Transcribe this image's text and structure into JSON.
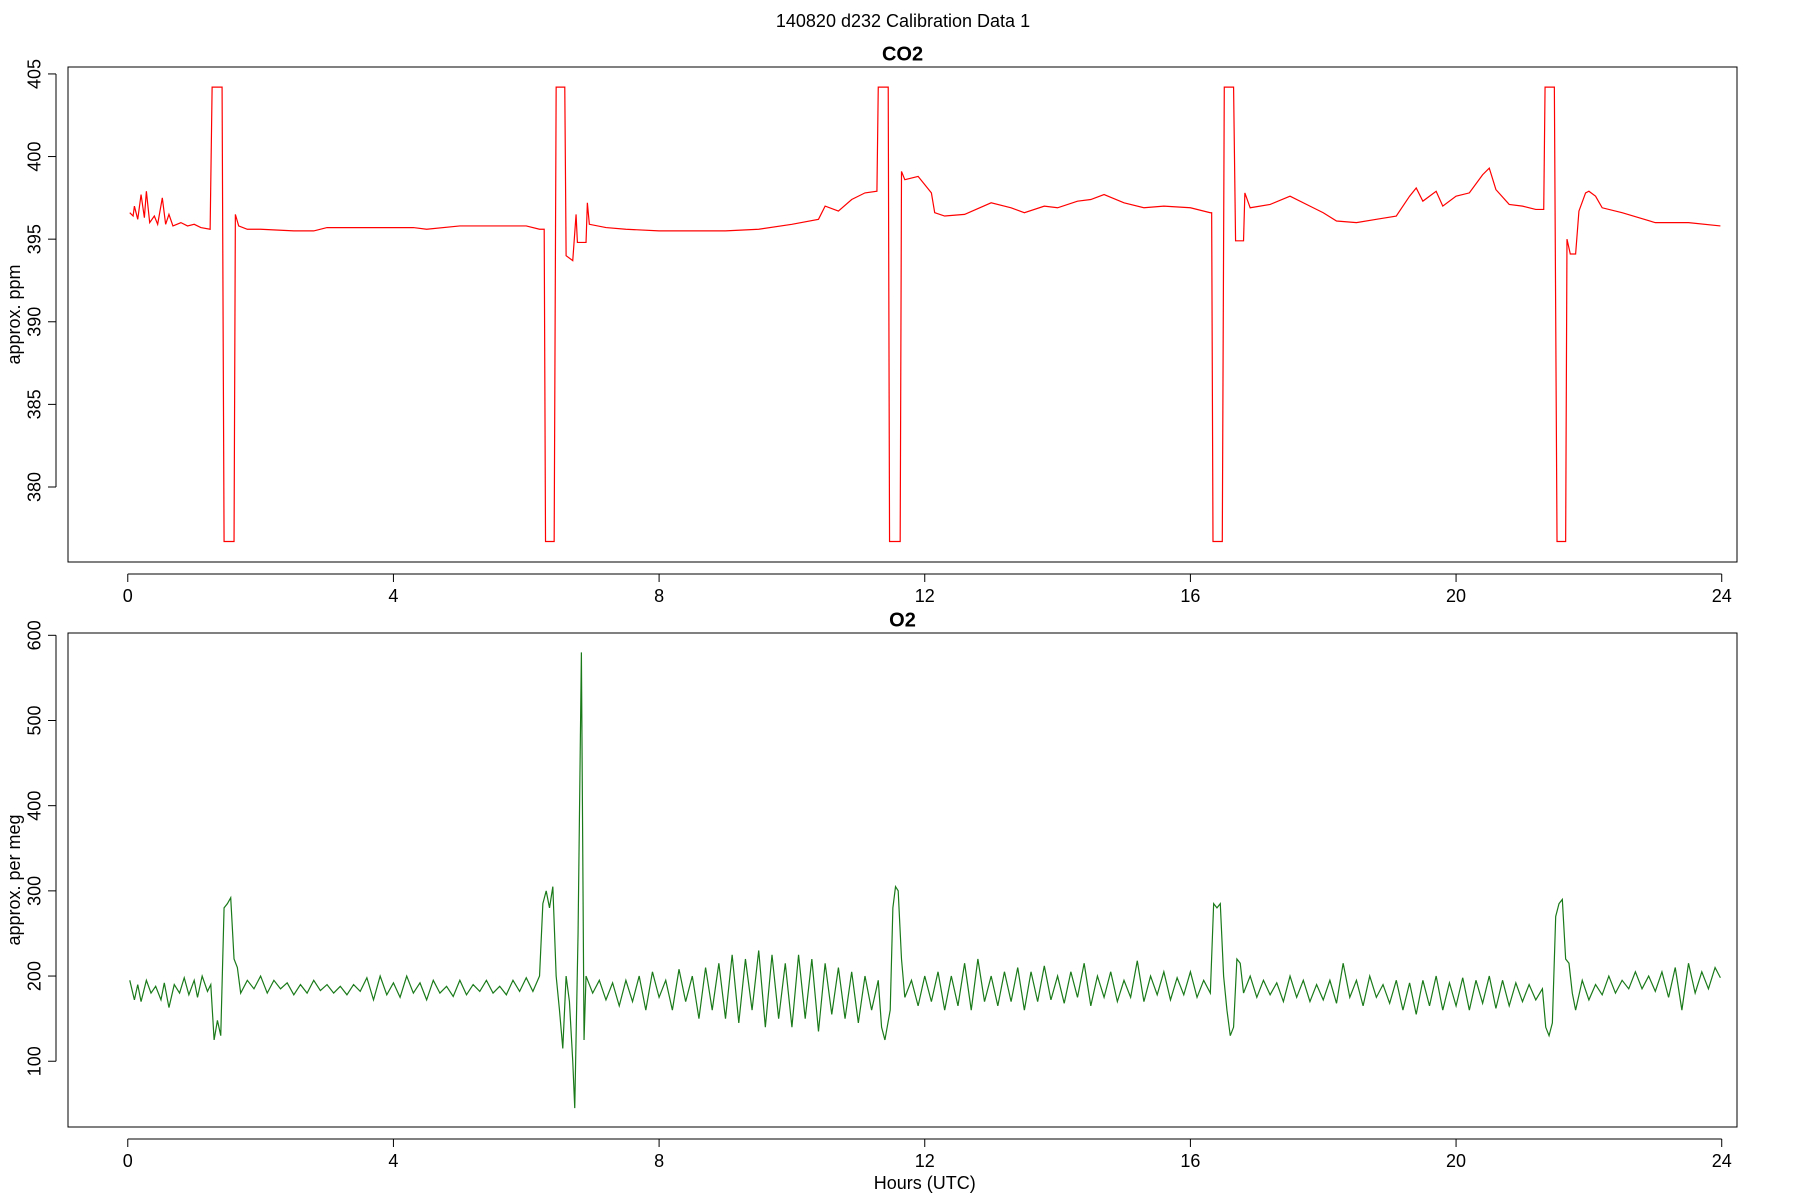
{
  "title": "140820   d232   Calibration Data 1",
  "chart_data": [
    {
      "type": "line",
      "title": "CO2",
      "ylabel": "approx. ppm",
      "xlim": [
        -0.9,
        24.23
      ],
      "ylim": [
        375.46,
        405.42
      ],
      "xticks": [
        0,
        4,
        8,
        12,
        16,
        20,
        24
      ],
      "yticks": [
        380,
        385,
        390,
        395,
        400,
        405
      ],
      "x": [
        0.03,
        0.08,
        0.1,
        0.15,
        0.2,
        0.25,
        0.28,
        0.33,
        0.4,
        0.45,
        0.52,
        0.57,
        0.62,
        0.68,
        0.8,
        0.9,
        1.0,
        1.1,
        1.24,
        1.27,
        1.42,
        1.45,
        1.6,
        1.62,
        1.67,
        1.8,
        2.0,
        2.5,
        2.8,
        3.0,
        3.5,
        4.0,
        4.3,
        4.5,
        5.0,
        5.5,
        6.0,
        6.2,
        6.27,
        6.29,
        6.42,
        6.45,
        6.58,
        6.6,
        6.7,
        6.75,
        6.77,
        6.9,
        6.92,
        6.95,
        7.2,
        7.5,
        8.0,
        8.5,
        9.0,
        9.5,
        10.0,
        10.4,
        10.5,
        10.7,
        10.9,
        11.1,
        11.28,
        11.3,
        11.45,
        11.47,
        11.63,
        11.65,
        11.7,
        11.9,
        12.0,
        12.1,
        12.15,
        12.3,
        12.6,
        13.0,
        13.3,
        13.5,
        13.8,
        14.0,
        14.3,
        14.5,
        14.7,
        15.0,
        15.3,
        15.6,
        16.0,
        16.3,
        16.32,
        16.34,
        16.48,
        16.51,
        16.65,
        16.68,
        16.8,
        16.82,
        16.9,
        17.2,
        17.5,
        17.8,
        18.0,
        18.2,
        18.5,
        18.8,
        19.1,
        19.3,
        19.4,
        19.5,
        19.7,
        19.8,
        20.0,
        20.2,
        20.4,
        20.5,
        20.6,
        20.8,
        21.0,
        21.2,
        21.32,
        21.34,
        21.48,
        21.52,
        21.65,
        21.67,
        21.72,
        21.8,
        21.85,
        21.95,
        22.0,
        22.1,
        22.2,
        22.5,
        23.0,
        23.5,
        23.98
      ],
      "series": [
        {
          "name": "CO2",
          "color": "#ff0000",
          "values": [
            396.6,
            396.4,
            397.0,
            396.2,
            397.7,
            396.3,
            397.9,
            396.0,
            396.4,
            395.9,
            397.5,
            395.9,
            396.5,
            395.8,
            396.0,
            395.8,
            395.9,
            395.7,
            395.6,
            404.2,
            404.2,
            376.7,
            376.7,
            396.5,
            395.8,
            395.6,
            395.6,
            395.5,
            395.5,
            395.7,
            395.7,
            395.7,
            395.7,
            395.6,
            395.8,
            395.8,
            395.8,
            395.6,
            395.6,
            376.7,
            376.7,
            404.2,
            404.2,
            394.0,
            393.7,
            396.5,
            394.8,
            394.8,
            397.2,
            395.9,
            395.7,
            395.6,
            395.5,
            395.5,
            395.5,
            395.6,
            395.9,
            396.2,
            397.0,
            396.7,
            397.4,
            397.8,
            397.9,
            404.2,
            404.2,
            376.7,
            376.7,
            399.1,
            398.6,
            398.8,
            398.3,
            397.8,
            396.6,
            396.4,
            396.5,
            397.2,
            396.9,
            396.6,
            397.0,
            396.9,
            397.3,
            397.4,
            397.7,
            397.2,
            396.9,
            397.0,
            396.9,
            396.6,
            396.6,
            376.7,
            376.7,
            404.2,
            404.2,
            394.9,
            394.9,
            397.8,
            396.9,
            397.1,
            397.6,
            397.0,
            396.6,
            396.1,
            396.0,
            396.2,
            396.4,
            397.6,
            398.1,
            397.3,
            397.9,
            397.0,
            397.6,
            397.8,
            398.9,
            399.3,
            398.0,
            397.1,
            397.0,
            396.8,
            396.8,
            404.2,
            404.2,
            376.7,
            376.7,
            395.0,
            394.1,
            394.1,
            396.7,
            397.8,
            397.9,
            397.6,
            396.9,
            396.6,
            396.0,
            396.0,
            395.8
          ]
        }
      ]
    },
    {
      "type": "line",
      "title": "O2",
      "ylabel": "approx. per meg",
      "xlabel": "Hours (UTC)",
      "xlim": [
        -0.9,
        24.23
      ],
      "ylim": [
        22.8,
        602.7
      ],
      "xticks": [
        0,
        4,
        8,
        12,
        16,
        20,
        24
      ],
      "yticks": [
        100,
        200,
        300,
        400,
        500,
        600
      ],
      "x": [
        0.03,
        0.1,
        0.15,
        0.2,
        0.28,
        0.35,
        0.42,
        0.5,
        0.55,
        0.62,
        0.7,
        0.78,
        0.85,
        0.92,
        1.0,
        1.05,
        1.12,
        1.2,
        1.25,
        1.3,
        1.35,
        1.4,
        1.45,
        1.5,
        1.55,
        1.6,
        1.65,
        1.7,
        1.8,
        1.9,
        2.0,
        2.1,
        2.2,
        2.3,
        2.4,
        2.5,
        2.6,
        2.7,
        2.8,
        2.9,
        3.0,
        3.1,
        3.2,
        3.3,
        3.4,
        3.5,
        3.6,
        3.7,
        3.8,
        3.9,
        4.0,
        4.1,
        4.2,
        4.3,
        4.4,
        4.5,
        4.6,
        4.7,
        4.8,
        4.9,
        5.0,
        5.1,
        5.2,
        5.3,
        5.4,
        5.5,
        5.6,
        5.7,
        5.8,
        5.9,
        6.0,
        6.1,
        6.2,
        6.25,
        6.3,
        6.35,
        6.4,
        6.45,
        6.5,
        6.55,
        6.6,
        6.65,
        6.7,
        6.73,
        6.78,
        6.83,
        6.87,
        6.9,
        7.0,
        7.1,
        7.2,
        7.3,
        7.4,
        7.5,
        7.6,
        7.7,
        7.8,
        7.9,
        8.0,
        8.1,
        8.2,
        8.3,
        8.4,
        8.5,
        8.6,
        8.7,
        8.8,
        8.9,
        9.0,
        9.1,
        9.2,
        9.3,
        9.4,
        9.5,
        9.6,
        9.7,
        9.8,
        9.9,
        10.0,
        10.1,
        10.2,
        10.3,
        10.4,
        10.5,
        10.6,
        10.7,
        10.8,
        10.9,
        11.0,
        11.1,
        11.2,
        11.3,
        11.35,
        11.4,
        11.48,
        11.52,
        11.56,
        11.6,
        11.65,
        11.7,
        11.8,
        11.9,
        12.0,
        12.1,
        12.2,
        12.3,
        12.4,
        12.5,
        12.6,
        12.7,
        12.8,
        12.9,
        13.0,
        13.1,
        13.2,
        13.3,
        13.4,
        13.5,
        13.6,
        13.7,
        13.8,
        13.9,
        14.0,
        14.1,
        14.2,
        14.3,
        14.4,
        14.5,
        14.6,
        14.7,
        14.8,
        14.9,
        15.0,
        15.1,
        15.2,
        15.3,
        15.4,
        15.5,
        15.6,
        15.7,
        15.8,
        15.9,
        16.0,
        16.1,
        16.2,
        16.3,
        16.35,
        16.4,
        16.45,
        16.5,
        16.55,
        16.6,
        16.65,
        16.7,
        16.75,
        16.8,
        16.9,
        17.0,
        17.1,
        17.2,
        17.3,
        17.4,
        17.5,
        17.6,
        17.7,
        17.8,
        17.9,
        18.0,
        18.1,
        18.2,
        18.3,
        18.4,
        18.5,
        18.6,
        18.7,
        18.8,
        18.9,
        19.0,
        19.1,
        19.2,
        19.3,
        19.4,
        19.5,
        19.6,
        19.7,
        19.8,
        19.9,
        20.0,
        20.1,
        20.2,
        20.3,
        20.4,
        20.5,
        20.6,
        20.7,
        20.8,
        20.9,
        21.0,
        21.1,
        21.2,
        21.3,
        21.35,
        21.4,
        21.45,
        21.5,
        21.55,
        21.6,
        21.65,
        21.7,
        21.75,
        21.8,
        21.9,
        22.0,
        22.1,
        22.2,
        22.3,
        22.4,
        22.5,
        22.6,
        22.7,
        22.8,
        22.9,
        23.0,
        23.1,
        23.2,
        23.3,
        23.4,
        23.5,
        23.6,
        23.7,
        23.8,
        23.9,
        23.98
      ],
      "series": [
        {
          "name": "O2",
          "color": "#1a7a1a",
          "values": [
            195,
            172,
            190,
            170,
            195,
            180,
            188,
            172,
            192,
            163,
            190,
            180,
            198,
            178,
            195,
            175,
            200,
            182,
            190,
            125,
            148,
            130,
            280,
            285,
            292,
            220,
            210,
            180,
            195,
            185,
            200,
            180,
            195,
            185,
            192,
            178,
            190,
            180,
            195,
            183,
            190,
            180,
            188,
            178,
            190,
            182,
            198,
            172,
            200,
            178,
            192,
            175,
            200,
            180,
            192,
            172,
            195,
            180,
            188,
            176,
            195,
            178,
            190,
            182,
            195,
            180,
            188,
            178,
            195,
            182,
            198,
            182,
            200,
            285,
            300,
            280,
            305,
            200,
            160,
            115,
            200,
            170,
            100,
            45,
            250,
            580,
            125,
            200,
            180,
            195,
            172,
            192,
            165,
            195,
            170,
            200,
            160,
            205,
            175,
            195,
            160,
            208,
            170,
            200,
            150,
            210,
            160,
            215,
            150,
            225,
            145,
            220,
            160,
            230,
            140,
            225,
            150,
            215,
            140,
            225,
            150,
            220,
            135,
            215,
            155,
            210,
            150,
            205,
            145,
            200,
            160,
            195,
            140,
            125,
            160,
            280,
            305,
            300,
            220,
            175,
            195,
            165,
            200,
            170,
            205,
            160,
            200,
            165,
            215,
            160,
            220,
            170,
            200,
            165,
            205,
            170,
            210,
            160,
            205,
            170,
            212,
            172,
            200,
            168,
            205,
            175,
            215,
            165,
            200,
            175,
            205,
            170,
            195,
            175,
            218,
            170,
            200,
            178,
            205,
            172,
            198,
            178,
            205,
            175,
            195,
            180,
            285,
            280,
            285,
            200,
            160,
            130,
            140,
            220,
            215,
            180,
            200,
            175,
            195,
            178,
            192,
            170,
            200,
            175,
            195,
            170,
            190,
            172,
            195,
            168,
            215,
            175,
            195,
            165,
            200,
            175,
            190,
            168,
            195,
            160,
            192,
            155,
            195,
            165,
            200,
            160,
            192,
            165,
            198,
            160,
            195,
            168,
            200,
            162,
            195,
            165,
            192,
            170,
            190,
            172,
            185,
            140,
            130,
            145,
            270,
            285,
            290,
            220,
            215,
            180,
            160,
            195,
            172,
            190,
            178,
            200,
            180,
            195,
            185,
            205,
            185,
            200,
            182,
            205,
            175,
            210,
            160,
            215,
            180,
            205,
            185,
            210,
            198
          ]
        }
      ]
    }
  ]
}
